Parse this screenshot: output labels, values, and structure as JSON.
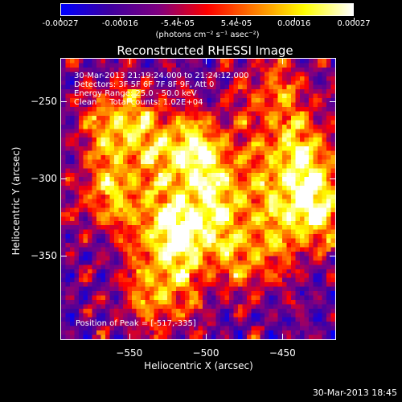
{
  "colorbar": {
    "tick_labels": [
      "-0.00027",
      "-0.00016",
      "-5.4e-05",
      "5.4e-05",
      "0.00016",
      "0.00027"
    ],
    "tick_values": [
      -0.00027,
      -0.00016,
      -5.4e-05,
      5.4e-05,
      0.00016,
      0.00027
    ],
    "units": "(photons cm⁻² s⁻¹ asec⁻²)",
    "range": [
      -0.00027,
      0.00027
    ]
  },
  "chart_data": {
    "type": "heatmap",
    "title": "Reconstructed RHESSI Image",
    "xlabel": "Heliocentric X (arcsec)",
    "ylabel": "Heliocentric Y (arcsec)",
    "xlim": [
      -595,
      -415
    ],
    "ylim": [
      -405,
      -222
    ],
    "x_ticks": [
      -550,
      -500,
      -450
    ],
    "x_tick_labels": [
      "−550",
      "−500",
      "−450"
    ],
    "y_ticks": [
      -250,
      -300,
      -350
    ],
    "y_tick_labels": [
      "−250",
      "−300",
      "−350"
    ],
    "colormap": [
      "#0000ff",
      "#4000a0",
      "#800080",
      "#ff0000",
      "#ff8000",
      "#ffff00",
      "#ffffff"
    ],
    "sources": [
      {
        "x": -517,
        "y": -335,
        "amp": 1.0
      },
      {
        "x": -510,
        "y": -283,
        "amp": 0.85
      },
      {
        "x": -432,
        "y": -320,
        "amp": 0.9
      },
      {
        "x": -555,
        "y": -265,
        "amp": 0.75
      },
      {
        "x": -560,
        "y": -310,
        "amp": 0.6
      },
      {
        "x": -440,
        "y": -285,
        "amp": 0.7
      },
      {
        "x": -470,
        "y": -350,
        "amp": 0.55
      },
      {
        "x": -530,
        "y": -375,
        "amp": 0.6
      },
      {
        "x": -485,
        "y": -310,
        "amp": 0.5
      },
      {
        "x": -455,
        "y": -245,
        "amp": 0.45
      }
    ],
    "grid": false
  },
  "info": {
    "line1": "30-Mar-2013 21:19:24.000 to 21:24:12.000",
    "line2": "Detectors: 3F 5F 6F 7F 8F 9F, Att 0",
    "line3": "Energy Range: 25.0 - 50.0 keV",
    "line4": "Clean     Total counts: 1.02E+04",
    "peak": "Position of Peak = [-517,-335]"
  },
  "timestamp": "30-Mar-2013 18:45"
}
